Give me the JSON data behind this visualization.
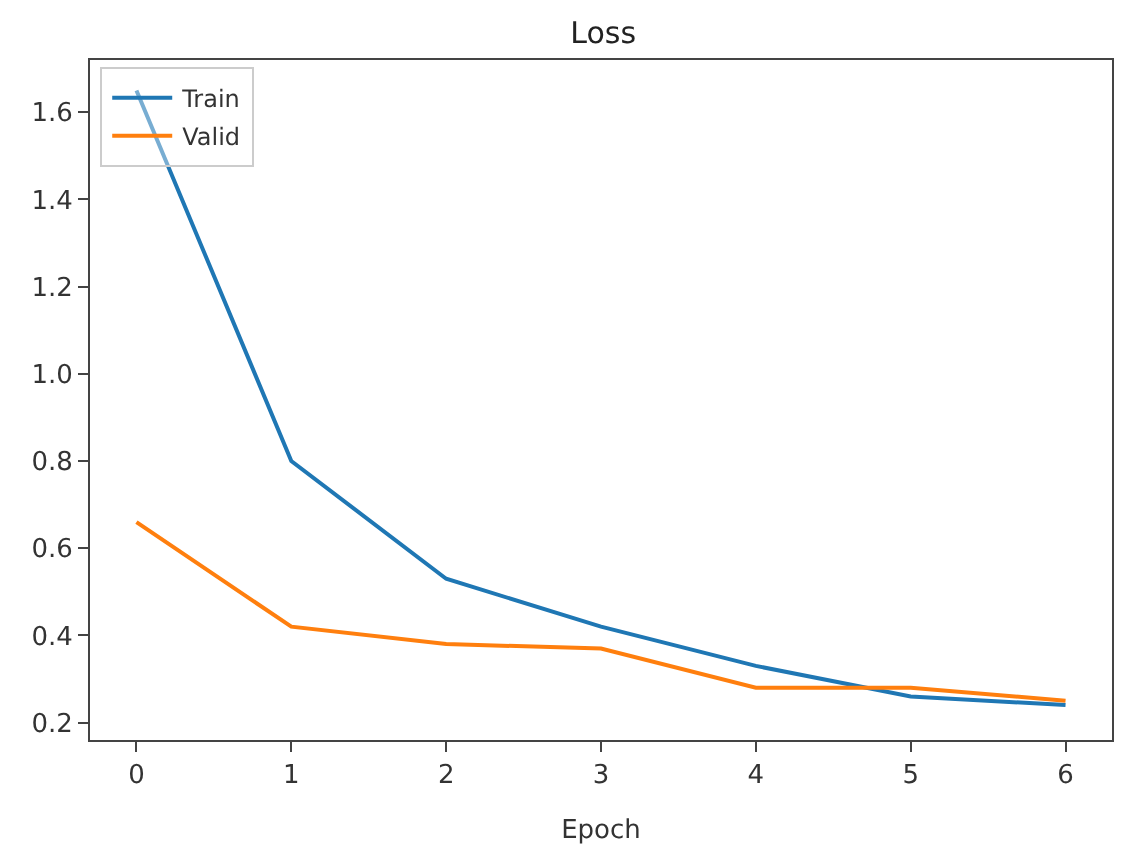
{
  "chart_data": {
    "type": "line",
    "title": "Loss",
    "xlabel": "Epoch",
    "x": [
      0,
      1,
      2,
      3,
      4,
      5,
      6
    ],
    "series": [
      {
        "name": "Train",
        "color": "#1f77b4",
        "values": [
          1.65,
          0.8,
          0.53,
          0.42,
          0.33,
          0.26,
          0.24
        ]
      },
      {
        "name": "Valid",
        "color": "#ff7f0e",
        "values": [
          0.66,
          0.42,
          0.38,
          0.37,
          0.28,
          0.28,
          0.25
        ]
      }
    ],
    "xlim": [
      -0.3,
      6.3
    ],
    "xticks": [
      0,
      1,
      2,
      3,
      4,
      5,
      6
    ],
    "ylim": [
      0.16,
      1.72
    ],
    "yticks": [
      0.2,
      0.4,
      0.6,
      0.8,
      {
        "value": 1.0,
        "label": "1.0"
      },
      1.2,
      1.4,
      1.6
    ],
    "legend": "top left"
  }
}
